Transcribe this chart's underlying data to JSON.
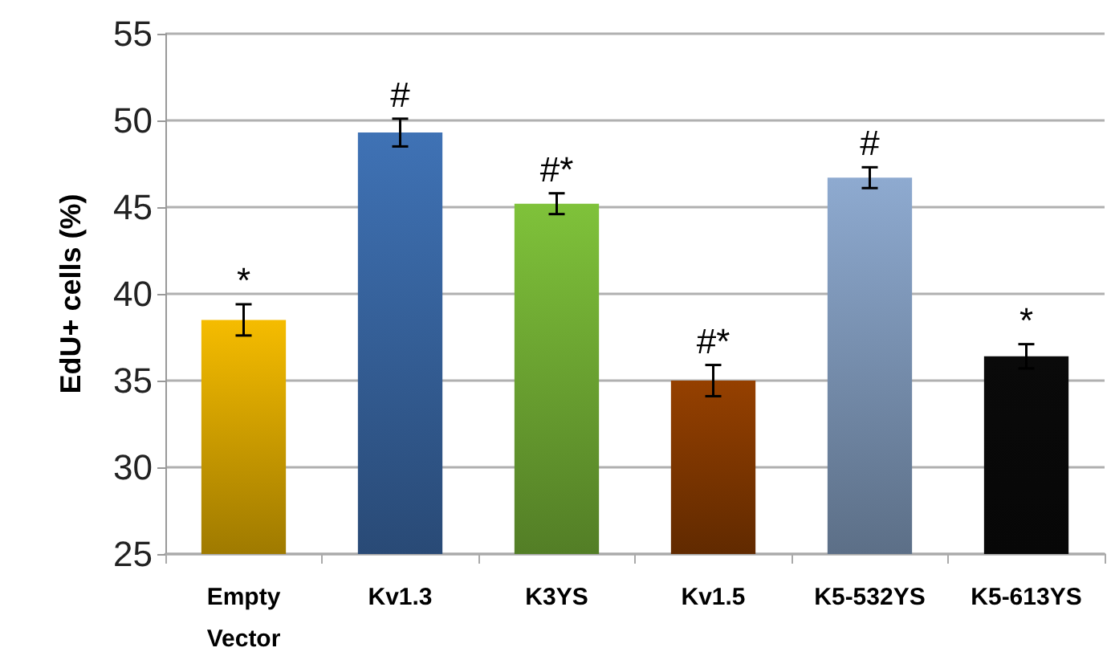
{
  "chart_data": {
    "type": "bar",
    "ylabel": "EdU+ cells (%)",
    "categories": [
      "Empty\nVector",
      "Kv1.3",
      "K3YS",
      "Kv1.5",
      "K5-532YS",
      "K5-613YS"
    ],
    "values": [
      38.5,
      49.3,
      45.2,
      35.0,
      46.7,
      36.4
    ],
    "errors": [
      0.9,
      0.8,
      0.6,
      0.9,
      0.6,
      0.7
    ],
    "colors": [
      "#f5bc00",
      "#3f72b5",
      "#7fc23a",
      "#954000",
      "#8eaad0",
      "#0a0a0a"
    ],
    "annotations": [
      {
        "text": "*",
        "x": "Empty\nVector",
        "y": 39.4
      },
      {
        "text": "#",
        "x": "Kv1.3",
        "y": 50.1
      },
      {
        "text": "#*",
        "x": "K3YS",
        "y": 45.8
      },
      {
        "text": "#*",
        "x": "Kv1.5",
        "y": 35.9
      },
      {
        "text": "#",
        "x": "K5-532YS",
        "y": 47.3
      },
      {
        "text": "*",
        "x": "K5-613YS",
        "y": 37.1
      }
    ],
    "ylim": [
      25,
      55
    ],
    "yticks": [
      25,
      30,
      35,
      40,
      45,
      50,
      55
    ],
    "grid": "y"
  }
}
